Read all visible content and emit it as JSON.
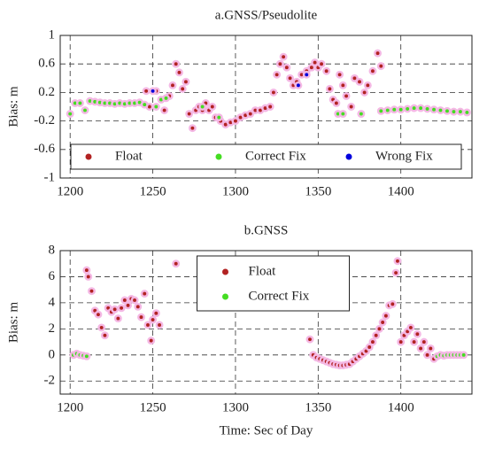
{
  "chart_data": [
    {
      "type": "scatter",
      "title": "a.GNSS/Pseudolite",
      "y_label": "Bias: m",
      "xlim": [
        1194,
        1443
      ],
      "xticks": [
        1200,
        1250,
        1300,
        1350,
        1400
      ],
      "ylim": [
        -1,
        1
      ],
      "yticks": [
        1,
        0.6,
        0.2,
        -0.2,
        -0.6,
        -1
      ],
      "grid": true,
      "legend": "lower center",
      "series": [
        {
          "name": "Float",
          "color": "#b22222",
          "x": [
            1246,
            1248,
            1252,
            1257,
            1260,
            1262,
            1264,
            1266,
            1268,
            1270,
            1272,
            1274,
            1276,
            1278,
            1280,
            1282,
            1284,
            1286,
            1288,
            1291,
            1294,
            1297,
            1300,
            1303,
            1306,
            1309,
            1312,
            1315,
            1318,
            1321,
            1323,
            1325,
            1327,
            1329,
            1331,
            1333,
            1335,
            1337,
            1340,
            1343,
            1346,
            1348,
            1350,
            1352,
            1355,
            1357,
            1359,
            1361,
            1363,
            1365,
            1367,
            1370,
            1372,
            1375,
            1378,
            1380,
            1383,
            1386,
            1388
          ],
          "values": [
            0.22,
            0.0,
            0.22,
            -0.05,
            0.15,
            0.3,
            0.6,
            0.48,
            0.25,
            0.35,
            -0.1,
            -0.3,
            -0.05,
            0.0,
            -0.05,
            0.05,
            -0.05,
            0.0,
            -0.15,
            -0.2,
            -0.25,
            -0.22,
            -0.2,
            -0.15,
            -0.12,
            -0.1,
            -0.05,
            -0.05,
            -0.02,
            0.0,
            0.2,
            0.45,
            0.6,
            0.7,
            0.55,
            0.4,
            0.3,
            0.35,
            0.45,
            0.5,
            0.55,
            0.62,
            0.55,
            0.6,
            0.5,
            0.25,
            0.1,
            0.05,
            0.45,
            0.3,
            0.15,
            0.0,
            0.4,
            0.35,
            0.2,
            0.3,
            0.5,
            0.75,
            0.57
          ]
        },
        {
          "name": "Correct Fix",
          "color": "#44dd22",
          "x": [
            1200,
            1203,
            1206,
            1209,
            1212,
            1215,
            1218,
            1221,
            1224,
            1227,
            1230,
            1233,
            1236,
            1239,
            1242,
            1245,
            1252,
            1255,
            1258,
            1280,
            1290,
            1362,
            1365,
            1376,
            1388,
            1392,
            1396,
            1400,
            1404,
            1408,
            1412,
            1416,
            1420,
            1424,
            1428,
            1432,
            1436,
            1440
          ],
          "values": [
            -0.1,
            0.05,
            0.05,
            -0.05,
            0.08,
            0.07,
            0.06,
            0.05,
            0.05,
            0.04,
            0.05,
            0.04,
            0.05,
            0.05,
            0.06,
            0.03,
            0.0,
            0.1,
            0.12,
            0.0,
            -0.15,
            -0.1,
            -0.1,
            -0.1,
            -0.06,
            -0.05,
            -0.04,
            -0.04,
            -0.03,
            -0.02,
            -0.02,
            -0.03,
            -0.04,
            -0.05,
            -0.06,
            -0.07,
            -0.07,
            -0.08
          ]
        },
        {
          "name": "Wrong Fix",
          "color": "#0000dd",
          "x": [
            1250,
            1338,
            1343
          ],
          "values": [
            0.22,
            0.3,
            0.45
          ]
        }
      ]
    },
    {
      "type": "scatter",
      "title": "b.GNSS",
      "y_label": "Bias: m",
      "x_label": "Time: Sec of Day",
      "xlim": [
        1194,
        1443
      ],
      "xticks": [
        1200,
        1250,
        1300,
        1350,
        1400
      ],
      "ylim": [
        -3,
        8
      ],
      "yticks": [
        8,
        6,
        4,
        2,
        0,
        -2
      ],
      "grid": true,
      "legend": "upper center",
      "series": [
        {
          "name": "Float",
          "color": "#b22222",
          "x": [
            1210,
            1211,
            1213,
            1215,
            1217,
            1219,
            1221,
            1223,
            1225,
            1227,
            1229,
            1231,
            1233,
            1235,
            1237,
            1239,
            1241,
            1243,
            1245,
            1247,
            1249,
            1250,
            1252,
            1254,
            1264,
            1345,
            1347,
            1349,
            1351,
            1353,
            1355,
            1357,
            1359,
            1361,
            1363,
            1365,
            1367,
            1369,
            1371,
            1373,
            1375,
            1377,
            1379,
            1381,
            1383,
            1385,
            1387,
            1389,
            1391,
            1393,
            1395,
            1397,
            1398,
            1400,
            1402,
            1404,
            1406,
            1408,
            1410,
            1412,
            1414,
            1416,
            1418,
            1420
          ],
          "values": [
            6.5,
            6.0,
            4.9,
            3.4,
            3.1,
            2.1,
            1.5,
            3.6,
            3.3,
            3.5,
            2.8,
            3.6,
            4.2,
            3.8,
            4.3,
            4.2,
            3.7,
            2.9,
            4.7,
            2.3,
            1.1,
            2.7,
            3.2,
            2.3,
            7.0,
            1.2,
            0.0,
            -0.2,
            -0.3,
            -0.4,
            -0.5,
            -0.6,
            -0.7,
            -0.75,
            -0.8,
            -0.8,
            -0.75,
            -0.7,
            -0.5,
            -0.3,
            -0.1,
            0.1,
            0.3,
            0.6,
            1.0,
            1.5,
            2.0,
            2.5,
            3.0,
            3.8,
            3.9,
            6.3,
            7.2,
            1.0,
            1.5,
            1.8,
            2.1,
            1.0,
            1.6,
            0.5,
            1.0,
            0.0,
            0.5,
            -0.3
          ]
        },
        {
          "name": "Correct Fix",
          "color": "#44dd22",
          "x": [
            1202,
            1204,
            1206,
            1208,
            1210,
            1422,
            1424,
            1426,
            1428,
            1430,
            1432,
            1434,
            1436,
            1438
          ],
          "values": [
            0.0,
            0.1,
            0.0,
            -0.05,
            -0.1,
            -0.1,
            0.0,
            -0.05,
            0.0,
            0.0,
            0.0,
            0.0,
            0.0,
            0.0
          ]
        }
      ]
    }
  ]
}
